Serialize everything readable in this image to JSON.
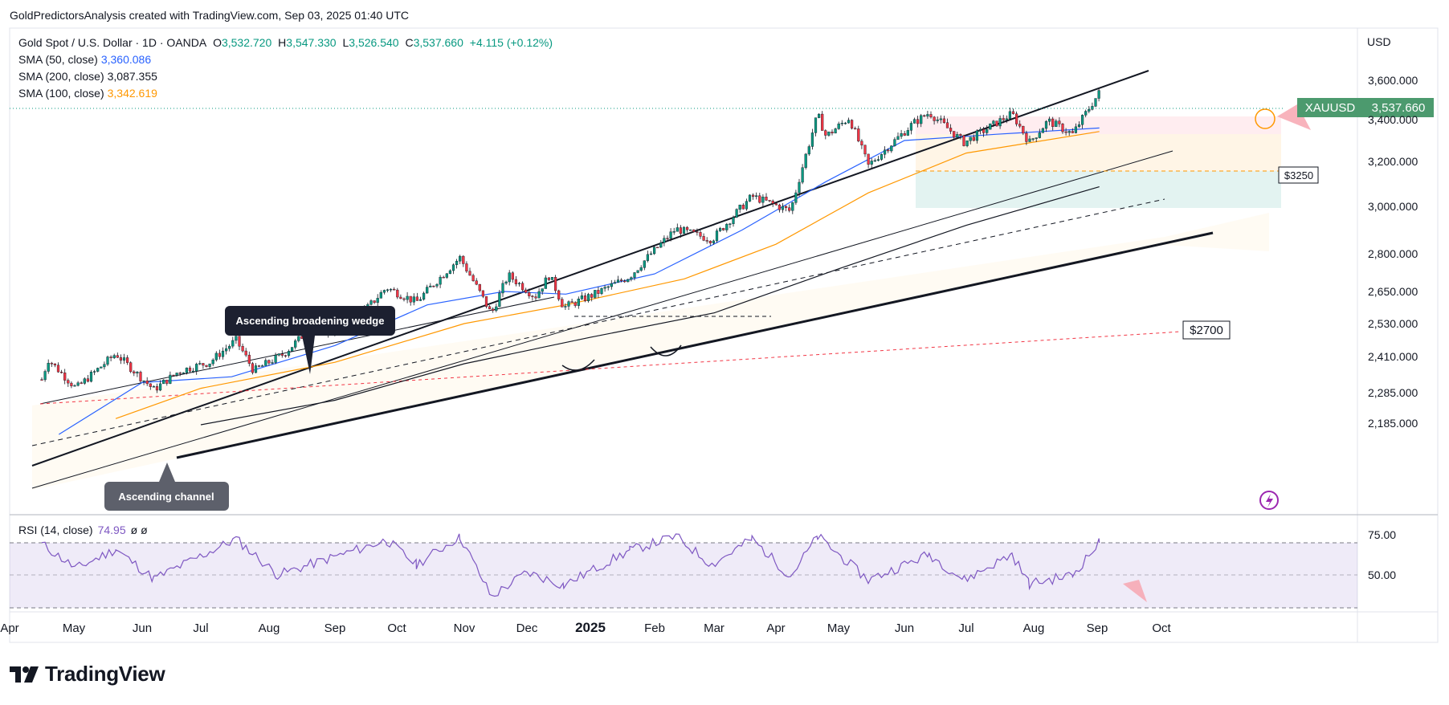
{
  "credit": "GoldPredictorsAnalysis created with TradingView.com, Sep 03, 2025 01:40 UTC",
  "header": {
    "symbol": "Gold Spot / U.S. Dollar · 1D · OANDA",
    "ohlc": [
      {
        "label": "O",
        "value": "3,532.720"
      },
      {
        "label": "H",
        "value": "3,547.330"
      },
      {
        "label": "L",
        "value": "3,526.540"
      },
      {
        "label": "C",
        "value": "3,537.660"
      }
    ],
    "change": "+4.115 (+0.12%)"
  },
  "indicators": [
    {
      "label": "SMA (50, close)",
      "value": "3,360.086",
      "color": "#2962ff"
    },
    {
      "label": "SMA (200, close)",
      "value": "3,087.355",
      "color": "#131722"
    },
    {
      "label": "SMA (100, close)",
      "value": "3,342.619",
      "color": "#ff9800"
    }
  ],
  "currency": "USD",
  "price_tag": {
    "symbol": "XAUUSD",
    "value": "3,537.660",
    "color": "#4c9a6e"
  },
  "annotations": {
    "wedge": "Ascending broadening wedge",
    "channel": "Ascending channel",
    "level_3250": "$3250",
    "level_2700": "$2700"
  },
  "rsi": {
    "label": "RSI (14, close)",
    "value": "74.95",
    "extra": "ø  ø",
    "levels": [
      "75.00",
      "50.00"
    ],
    "color": "#7e57c2"
  },
  "brand": "TradingView",
  "chart_data": {
    "type": "candlestick",
    "title": "Gold Spot / U.S. Dollar · 1D · OANDA",
    "yaxis_ticks": [
      3600,
      3400,
      3200,
      3000,
      2800,
      2650,
      2530,
      2410,
      2285,
      2185
    ],
    "yaxis_labels": [
      "3,600.000",
      "3,400.000",
      "3,200.000",
      "3,000.000",
      "2,800.000",
      "2,650.000",
      "2,530.000",
      "2,410.000",
      "2,285.000",
      "2,185.000"
    ],
    "xaxis_labels": [
      "Apr",
      "May",
      "Jun",
      "Jul",
      "Aug",
      "Sep",
      "Oct",
      "Nov",
      "Dec",
      "2025",
      "Feb",
      "Mar",
      "Apr",
      "May",
      "Jun",
      "Jul",
      "Aug",
      "Sep",
      "Oct"
    ],
    "xaxis_dates": [
      "2024-04-01",
      "2024-05-01",
      "2024-06-01",
      "2024-07-01",
      "2024-08-01",
      "2024-09-01",
      "2024-10-01",
      "2024-11-01",
      "2024-12-01",
      "2025-01-01",
      "2025-02-01",
      "2025-03-01",
      "2025-04-01",
      "2025-05-01",
      "2025-06-01",
      "2025-07-01",
      "2025-08-01",
      "2025-09-01",
      "2025-10-01"
    ],
    "close_path": [
      [
        "2024-04-16",
        2330
      ],
      [
        "2024-04-19",
        2400
      ],
      [
        "2024-05-02",
        2300
      ],
      [
        "2024-05-20",
        2420
      ],
      [
        "2024-06-07",
        2295
      ],
      [
        "2024-06-20",
        2360
      ],
      [
        "2024-07-05",
        2390
      ],
      [
        "2024-07-17",
        2470
      ],
      [
        "2024-07-25",
        2360
      ],
      [
        "2024-08-08",
        2420
      ],
      [
        "2024-08-20",
        2510
      ],
      [
        "2024-09-06",
        2500
      ],
      [
        "2024-09-26",
        2665
      ],
      [
        "2024-10-10",
        2610
      ],
      [
        "2024-10-30",
        2785
      ],
      [
        "2024-11-14",
        2565
      ],
      [
        "2024-11-22",
        2715
      ],
      [
        "2024-12-05",
        2630
      ],
      [
        "2024-12-12",
        2715
      ],
      [
        "2024-12-19",
        2590
      ],
      [
        "2025-01-03",
        2640
      ],
      [
        "2025-01-20",
        2710
      ],
      [
        "2025-02-11",
        2905
      ],
      [
        "2025-02-28",
        2860
      ],
      [
        "2025-03-20",
        3045
      ],
      [
        "2025-04-08",
        2980
      ],
      [
        "2025-04-21",
        3425
      ],
      [
        "2025-04-25",
        3320
      ],
      [
        "2025-05-06",
        3410
      ],
      [
        "2025-05-15",
        3180
      ],
      [
        "2025-06-05",
        3380
      ],
      [
        "2025-06-13",
        3435
      ],
      [
        "2025-06-30",
        3290
      ],
      [
        "2025-07-22",
        3430
      ],
      [
        "2025-07-30",
        3290
      ],
      [
        "2025-08-08",
        3395
      ],
      [
        "2025-08-20",
        3330
      ],
      [
        "2025-09-02",
        3538
      ]
    ],
    "sma50": [
      [
        "2024-04-24",
        2150
      ],
      [
        "2024-06-01",
        2320
      ],
      [
        "2024-07-15",
        2340
      ],
      [
        "2024-09-01",
        2450
      ],
      [
        "2024-10-15",
        2600
      ],
      [
        "2024-11-20",
        2650
      ],
      [
        "2024-12-20",
        2640
      ],
      [
        "2025-02-01",
        2720
      ],
      [
        "2025-03-15",
        2900
      ],
      [
        "2025-04-25",
        3110
      ],
      [
        "2025-06-01",
        3300
      ],
      [
        "2025-07-15",
        3330
      ],
      [
        "2025-09-02",
        3360
      ]
    ],
    "sma100": [
      [
        "2024-05-20",
        2200
      ],
      [
        "2024-07-01",
        2300
      ],
      [
        "2024-09-01",
        2390
      ],
      [
        "2024-11-01",
        2530
      ],
      [
        "2024-12-20",
        2600
      ],
      [
        "2025-02-15",
        2700
      ],
      [
        "2025-04-01",
        2840
      ],
      [
        "2025-05-15",
        3060
      ],
      [
        "2025-07-01",
        3240
      ],
      [
        "2025-09-02",
        3343
      ]
    ],
    "sma200": [
      [
        "2024-07-01",
        2180
      ],
      [
        "2024-09-01",
        2260
      ],
      [
        "2024-11-01",
        2385
      ],
      [
        "2025-01-01",
        2480
      ],
      [
        "2025-03-01",
        2570
      ],
      [
        "2025-05-01",
        2740
      ],
      [
        "2025-07-01",
        2920
      ],
      [
        "2025-09-02",
        3087
      ]
    ],
    "rsi": [
      [
        "2024-04-16",
        74
      ],
      [
        "2024-05-02",
        55
      ],
      [
        "2024-05-20",
        70
      ],
      [
        "2024-06-07",
        47
      ],
      [
        "2024-07-17",
        78
      ],
      [
        "2024-08-05",
        50
      ],
      [
        "2024-09-26",
        77
      ],
      [
        "2024-10-10",
        58
      ],
      [
        "2024-10-30",
        80
      ],
      [
        "2024-11-14",
        33
      ],
      [
        "2024-12-01",
        52
      ],
      [
        "2024-12-19",
        42
      ],
      [
        "2025-01-20",
        69
      ],
      [
        "2025-02-11",
        80
      ],
      [
        "2025-02-28",
        58
      ],
      [
        "2025-03-20",
        78
      ],
      [
        "2025-04-08",
        49
      ],
      [
        "2025-04-21",
        80
      ],
      [
        "2025-05-15",
        46
      ],
      [
        "2025-06-13",
        66
      ],
      [
        "2025-06-30",
        46
      ],
      [
        "2025-07-22",
        66
      ],
      [
        "2025-07-30",
        43
      ],
      [
        "2025-08-20",
        50
      ],
      [
        "2025-09-02",
        75
      ]
    ],
    "last_close": 3537.66
  }
}
